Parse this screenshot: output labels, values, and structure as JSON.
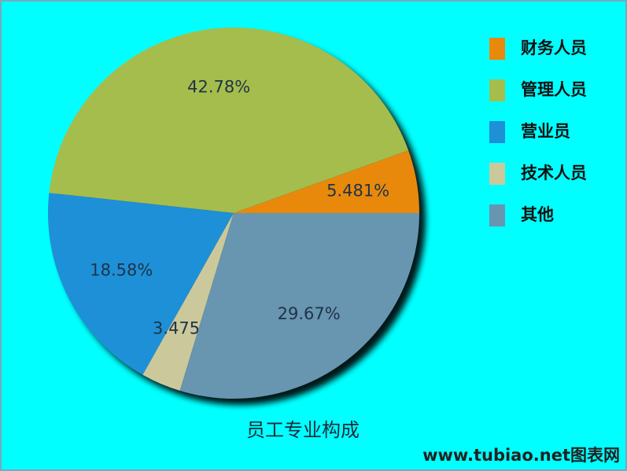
{
  "chart_data": {
    "type": "pie",
    "title": "员工专业构成",
    "categories": [
      "财务人员",
      "管理人员",
      "营业员",
      "技术人员",
      "其他"
    ],
    "values": [
      5.481,
      42.78,
      18.58,
      3.475,
      29.67
    ],
    "value_labels": [
      "5.481%",
      "42.78%",
      "18.58%",
      "3.475%",
      "29.67%"
    ],
    "colors": [
      "#e8890c",
      "#a5bd4c",
      "#1e90d8",
      "#cbc99b",
      "#6895b0"
    ],
    "watermark": "www.tubiao.net图表网"
  }
}
